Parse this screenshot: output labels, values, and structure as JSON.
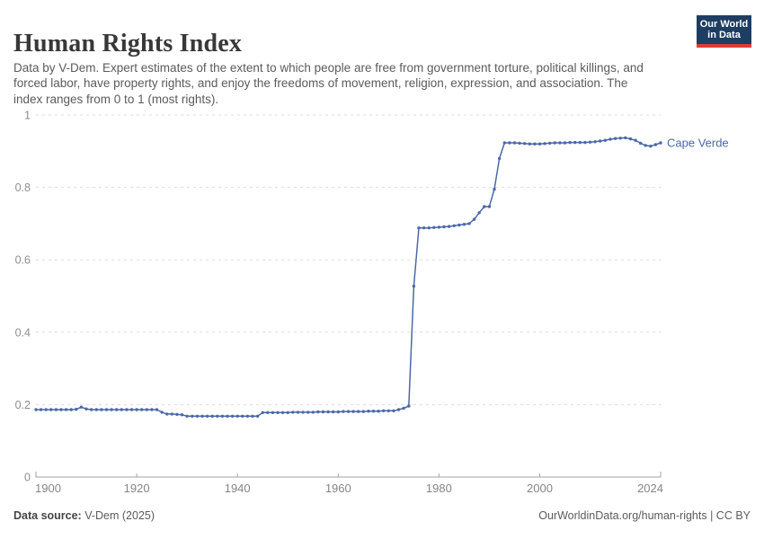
{
  "header": {
    "title": "Human Rights Index",
    "subtitle": "Data by V-Dem. Expert estimates of the extent to which people are free from government torture, political killings, and forced labor, have property rights, and enjoy the freedoms of movement, religion, expression, and association. The index ranges from 0 to 1 (most rights).",
    "logo": {
      "line1": "Our World",
      "line2": "in Data",
      "bg_color": "#1d3d63",
      "accent_color": "#dc3d33"
    }
  },
  "chart_data": {
    "type": "line",
    "title": "Human Rights Index",
    "xlabel": "",
    "ylabel": "",
    "xlim": [
      1900,
      2024
    ],
    "ylim": [
      0,
      1
    ],
    "xticks": [
      1900,
      1920,
      1940,
      1960,
      1980,
      2000,
      2024
    ],
    "yticks": [
      0,
      0.2,
      0.4,
      0.6,
      0.8,
      1
    ],
    "ytick_labels": [
      "0",
      "0.2",
      "0.4",
      "0.6",
      "0.8",
      "1"
    ],
    "grid": "horizontal-dashed",
    "grid_color": "#dcdcdc",
    "axis_color": "#a3a3a3",
    "tick_label_color_x": "#858585",
    "tick_label_color_y": "#8e8e8e",
    "legend": "end-of-line-label",
    "series": [
      {
        "name": "Cape Verde",
        "color": "#4a69a8",
        "points": [
          [
            1900,
            0.186
          ],
          [
            1901,
            0.186
          ],
          [
            1902,
            0.186
          ],
          [
            1903,
            0.186
          ],
          [
            1904,
            0.186
          ],
          [
            1905,
            0.186
          ],
          [
            1906,
            0.186
          ],
          [
            1907,
            0.186
          ],
          [
            1908,
            0.187
          ],
          [
            1909,
            0.193
          ],
          [
            1910,
            0.188
          ],
          [
            1911,
            0.186
          ],
          [
            1912,
            0.186
          ],
          [
            1913,
            0.186
          ],
          [
            1914,
            0.186
          ],
          [
            1915,
            0.186
          ],
          [
            1916,
            0.186
          ],
          [
            1917,
            0.186
          ],
          [
            1918,
            0.186
          ],
          [
            1919,
            0.186
          ],
          [
            1920,
            0.186
          ],
          [
            1921,
            0.186
          ],
          [
            1922,
            0.186
          ],
          [
            1923,
            0.186
          ],
          [
            1924,
            0.186
          ],
          [
            1925,
            0.179
          ],
          [
            1926,
            0.174
          ],
          [
            1927,
            0.174
          ],
          [
            1928,
            0.173
          ],
          [
            1929,
            0.172
          ],
          [
            1930,
            0.168
          ],
          [
            1931,
            0.168
          ],
          [
            1932,
            0.168
          ],
          [
            1933,
            0.168
          ],
          [
            1934,
            0.168
          ],
          [
            1935,
            0.168
          ],
          [
            1936,
            0.168
          ],
          [
            1937,
            0.168
          ],
          [
            1938,
            0.168
          ],
          [
            1939,
            0.168
          ],
          [
            1940,
            0.168
          ],
          [
            1941,
            0.168
          ],
          [
            1942,
            0.168
          ],
          [
            1943,
            0.168
          ],
          [
            1944,
            0.168
          ],
          [
            1945,
            0.178
          ],
          [
            1946,
            0.178
          ],
          [
            1947,
            0.178
          ],
          [
            1948,
            0.178
          ],
          [
            1949,
            0.178
          ],
          [
            1950,
            0.178
          ],
          [
            1951,
            0.179
          ],
          [
            1952,
            0.179
          ],
          [
            1953,
            0.179
          ],
          [
            1954,
            0.179
          ],
          [
            1955,
            0.179
          ],
          [
            1956,
            0.18
          ],
          [
            1957,
            0.18
          ],
          [
            1958,
            0.18
          ],
          [
            1959,
            0.18
          ],
          [
            1960,
            0.18
          ],
          [
            1961,
            0.181
          ],
          [
            1962,
            0.181
          ],
          [
            1963,
            0.181
          ],
          [
            1964,
            0.181
          ],
          [
            1965,
            0.181
          ],
          [
            1966,
            0.182
          ],
          [
            1967,
            0.182
          ],
          [
            1968,
            0.182
          ],
          [
            1969,
            0.183
          ],
          [
            1970,
            0.183
          ],
          [
            1971,
            0.183
          ],
          [
            1972,
            0.186
          ],
          [
            1973,
            0.19
          ],
          [
            1974,
            0.196
          ],
          [
            1975,
            0.527
          ],
          [
            1976,
            0.688
          ],
          [
            1977,
            0.688
          ],
          [
            1978,
            0.688
          ],
          [
            1979,
            0.689
          ],
          [
            1980,
            0.69
          ],
          [
            1981,
            0.691
          ],
          [
            1982,
            0.692
          ],
          [
            1983,
            0.694
          ],
          [
            1984,
            0.696
          ],
          [
            1985,
            0.698
          ],
          [
            1986,
            0.7
          ],
          [
            1987,
            0.712
          ],
          [
            1988,
            0.73
          ],
          [
            1989,
            0.747
          ],
          [
            1990,
            0.747
          ],
          [
            1991,
            0.795
          ],
          [
            1992,
            0.88
          ],
          [
            1993,
            0.923
          ],
          [
            1994,
            0.923
          ],
          [
            1995,
            0.923
          ],
          [
            1996,
            0.922
          ],
          [
            1997,
            0.921
          ],
          [
            1998,
            0.92
          ],
          [
            1999,
            0.92
          ],
          [
            2000,
            0.92
          ],
          [
            2001,
            0.921
          ],
          [
            2002,
            0.922
          ],
          [
            2003,
            0.923
          ],
          [
            2004,
            0.923
          ],
          [
            2005,
            0.923
          ],
          [
            2006,
            0.924
          ],
          [
            2007,
            0.924
          ],
          [
            2008,
            0.924
          ],
          [
            2009,
            0.924
          ],
          [
            2010,
            0.925
          ],
          [
            2011,
            0.926
          ],
          [
            2012,
            0.928
          ],
          [
            2013,
            0.93
          ],
          [
            2014,
            0.933
          ],
          [
            2015,
            0.935
          ],
          [
            2016,
            0.936
          ],
          [
            2017,
            0.937
          ],
          [
            2018,
            0.934
          ],
          [
            2019,
            0.93
          ],
          [
            2020,
            0.922
          ],
          [
            2021,
            0.916
          ],
          [
            2022,
            0.914
          ],
          [
            2023,
            0.918
          ],
          [
            2024,
            0.923
          ]
        ]
      }
    ]
  },
  "footer": {
    "source_label": "Data source:",
    "source_value": " V-Dem (2025)",
    "credit": "OurWorldinData.org/human-rights | CC BY"
  }
}
